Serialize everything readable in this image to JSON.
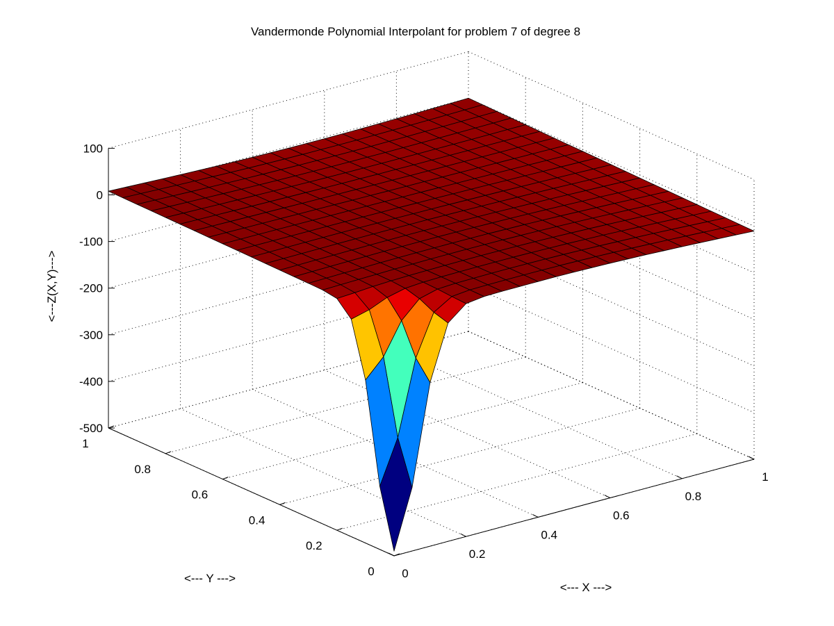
{
  "chart_data": {
    "type": "surface",
    "title": "Vandermonde Polynomial Interpolant for problem 7 of degree 8",
    "xlabel": "<--- X --->",
    "ylabel": "<--- Y --->",
    "zlabel": "<---Z(X,Y)--->",
    "xlim": [
      0,
      1
    ],
    "ylim": [
      0,
      1
    ],
    "zlim": [
      -500,
      100
    ],
    "x_ticks": [
      "0",
      "0.2",
      "0.4",
      "0.6",
      "0.8",
      "1"
    ],
    "y_ticks": [
      "0",
      "0.2",
      "0.4",
      "0.6",
      "0.8",
      "1"
    ],
    "z_ticks": [
      "-500",
      "-400",
      "-300",
      "-200",
      "-100",
      "0",
      "100"
    ],
    "grid": true,
    "grid_points": 21,
    "colormap": "jet",
    "surface_notes": "Near-flat surface close to 0 with a deep narrow well reaching about -490 at (x=0, y=0)",
    "surface_edge_color": "#000000"
  }
}
